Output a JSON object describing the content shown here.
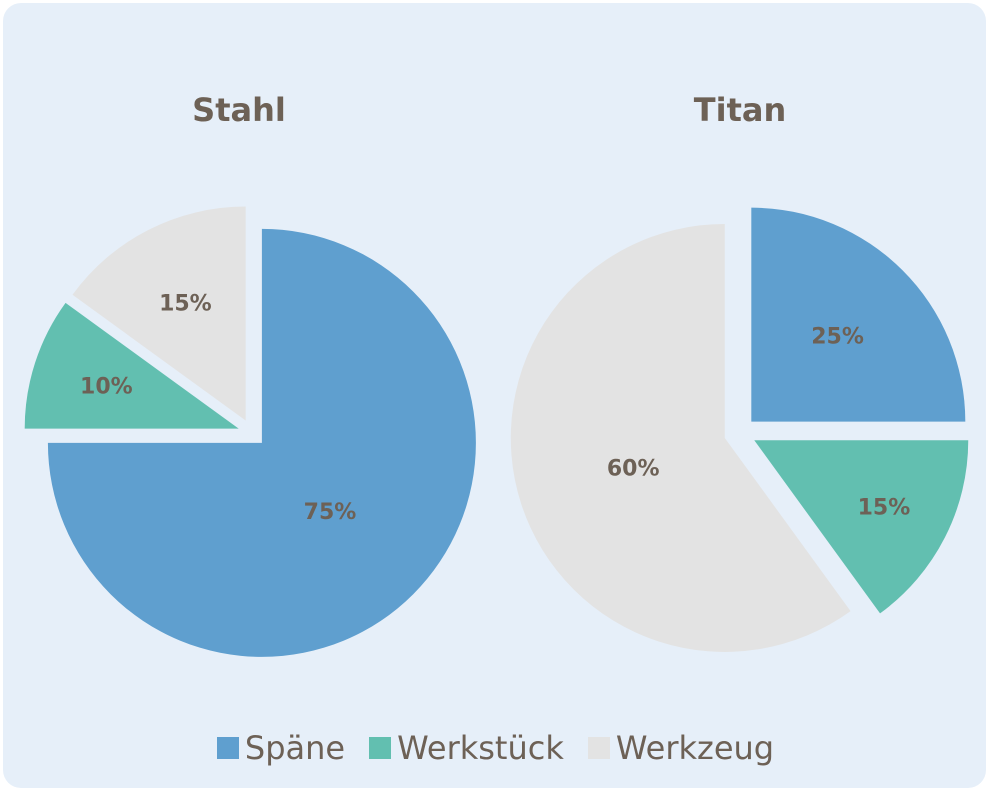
{
  "colors": {
    "spaene": "#5f9fcf",
    "werkstueck": "#62bfb0",
    "werkzeug": "#e3e3e3",
    "text": "#6d6156",
    "background": "#e6eff9"
  },
  "chart_data": [
    {
      "type": "pie",
      "title": "Stahl",
      "categories": [
        "Späne",
        "Werkstück",
        "Werkzeug"
      ],
      "values": [
        75,
        10,
        15
      ],
      "labels": [
        "75%",
        "10%",
        "15%"
      ],
      "exploded": true
    },
    {
      "type": "pie",
      "title": "Titan",
      "categories": [
        "Späne",
        "Werkstück",
        "Werkzeug"
      ],
      "values": [
        25,
        15,
        60
      ],
      "labels": [
        "25%",
        "15%",
        "60%"
      ],
      "exploded": true
    }
  ],
  "legend": {
    "placement": "bottom",
    "items": [
      "Späne",
      "Werkstück",
      "Werkzeug"
    ]
  }
}
